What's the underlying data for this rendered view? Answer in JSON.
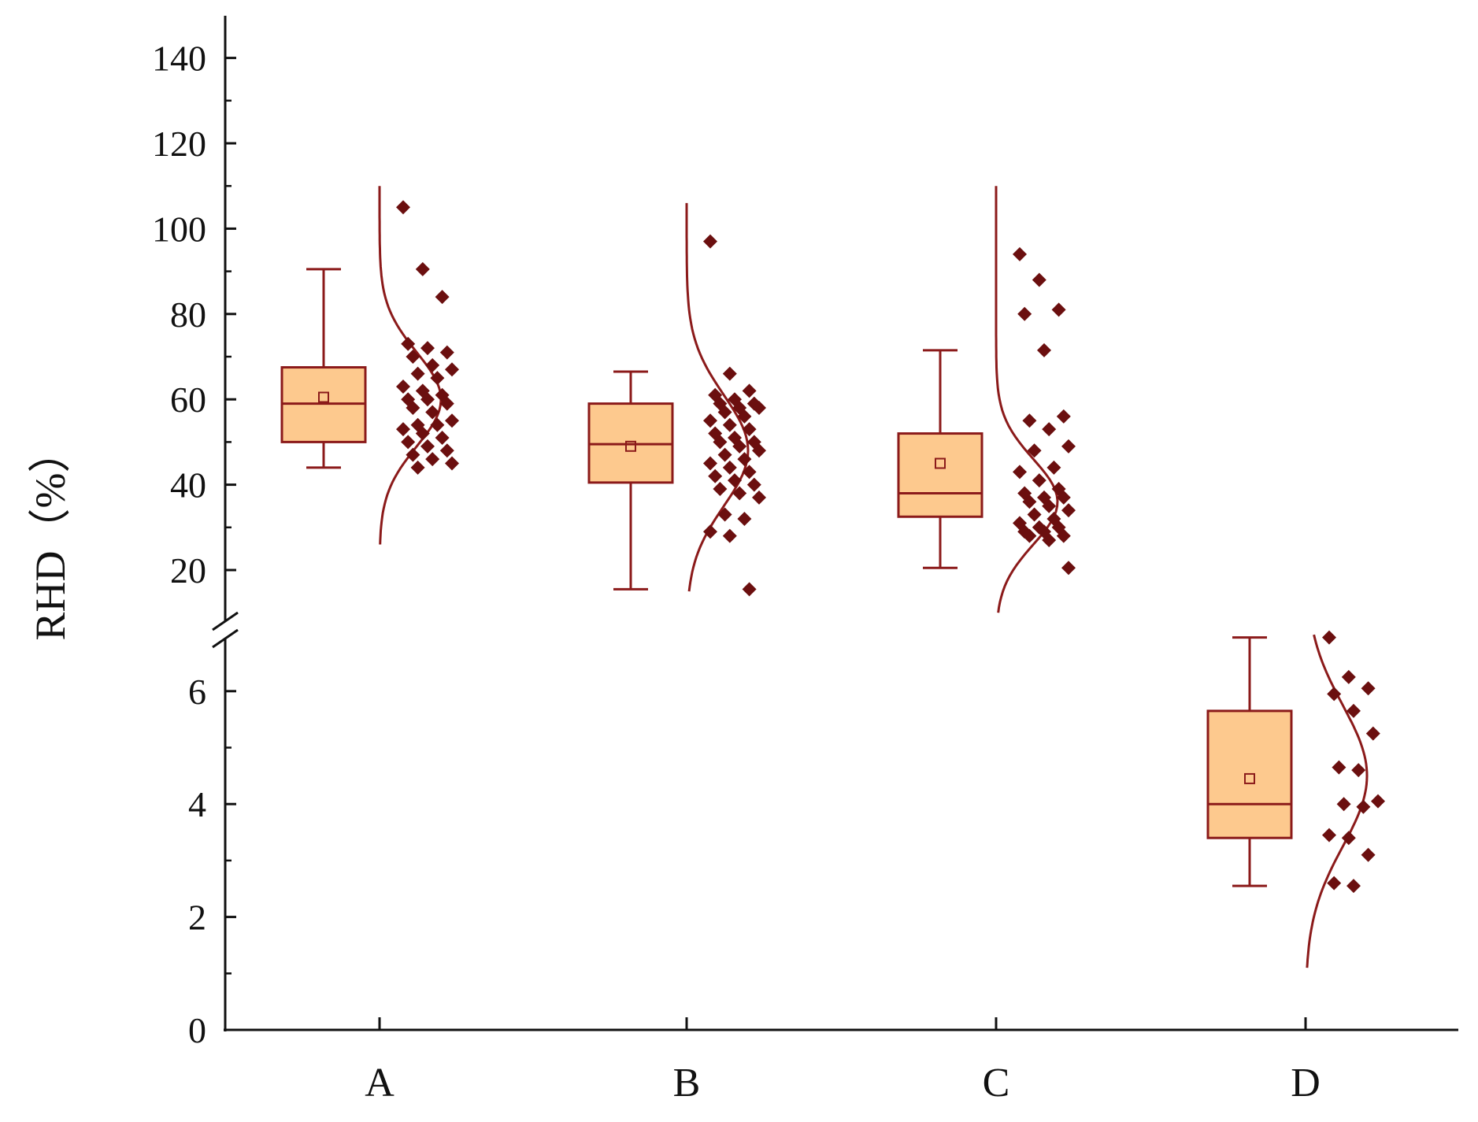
{
  "chart_data": {
    "type": "box",
    "title": "",
    "xlabel": "",
    "ylabel": "RHD（%）",
    "categories": [
      "A",
      "B",
      "C",
      "D"
    ],
    "y_axis": {
      "broken": true,
      "lower_segment": {
        "range": [
          0,
          7
        ],
        "ticks": [
          0,
          2,
          4,
          6
        ],
        "tick_labels": [
          "0",
          "2",
          "4",
          "6"
        ]
      },
      "upper_segment": {
        "range": [
          10,
          150
        ],
        "ticks": [
          20,
          40,
          60,
          80,
          100,
          120,
          140
        ],
        "tick_labels": [
          "20",
          "40",
          "60",
          "80",
          "100",
          "120",
          "140"
        ]
      }
    },
    "colors": {
      "box_fill": "#FDC98E",
      "line": "#8B1A1A",
      "points": "#6B0F0F",
      "axis": "#111111"
    },
    "series": [
      {
        "name": "A",
        "segment": "upper",
        "box": {
          "whisker_low": 44,
          "q1": 50,
          "median": 59,
          "q3": 67.5,
          "whisker_high": 90.5,
          "mean": 60.5
        },
        "points": [
          105,
          90.5,
          84,
          73,
          72,
          71,
          70,
          68,
          67,
          66,
          65,
          63,
          62,
          61,
          60,
          60,
          59,
          58,
          57,
          55,
          54,
          54,
          53,
          52,
          51,
          50,
          49,
          48,
          47,
          46,
          45,
          44
        ],
        "curve": {
          "mean": 60,
          "sd": 11,
          "range": [
            26,
            110
          ]
        }
      },
      {
        "name": "B",
        "segment": "upper",
        "box": {
          "whisker_low": 15.5,
          "q1": 40.5,
          "median": 49.5,
          "q3": 59,
          "whisker_high": 66.5,
          "mean": 49
        },
        "points": [
          97,
          66,
          62,
          61,
          60,
          59,
          59,
          58,
          58,
          57,
          56,
          55,
          54,
          53,
          52,
          51,
          50,
          50,
          49,
          48,
          47,
          46,
          45,
          44,
          43,
          42,
          41,
          40,
          39,
          38,
          37,
          33,
          32,
          29,
          28,
          15.5
        ],
        "curve": {
          "mean": 48,
          "sd": 13,
          "range": [
            15,
            106
          ]
        }
      },
      {
        "name": "C",
        "segment": "upper",
        "box": {
          "whisker_low": 20.5,
          "q1": 32.5,
          "median": 38,
          "q3": 52,
          "whisker_high": 71.5,
          "mean": 45
        },
        "points": [
          94,
          88,
          81,
          80,
          71.5,
          56,
          55,
          53,
          49,
          48,
          44,
          43,
          41,
          39,
          38,
          37,
          37,
          36,
          35,
          34,
          33,
          32,
          31,
          30,
          30,
          29,
          29,
          28,
          28,
          27,
          20.5
        ],
        "curve": {
          "mean": 36,
          "sd": 10,
          "range": [
            10,
            110
          ]
        }
      },
      {
        "name": "D",
        "segment": "lower",
        "box": {
          "whisker_low": 2.55,
          "q1": 3.4,
          "median": 4.0,
          "q3": 5.65,
          "whisker_high": 6.95,
          "mean": 4.45
        },
        "points": [
          6.95,
          6.25,
          6.05,
          5.95,
          5.65,
          5.25,
          4.65,
          4.6,
          4.05,
          4.0,
          3.95,
          3.45,
          3.4,
          3.1,
          2.6,
          2.55
        ],
        "curve": {
          "mean": 4.5,
          "sd": 1.25,
          "range": [
            1.1,
            7.0
          ]
        }
      }
    ]
  }
}
